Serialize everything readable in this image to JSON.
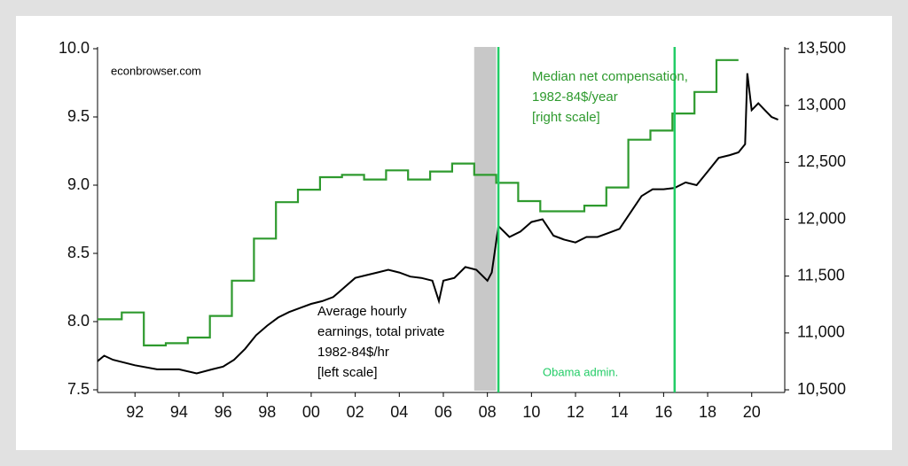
{
  "chart_data": {
    "type": "line",
    "xlim": [
      1990.3,
      2021.5
    ],
    "xticks": [
      {
        "value": 1992,
        "label": "92"
      },
      {
        "value": 1994,
        "label": "94"
      },
      {
        "value": 1996,
        "label": "96"
      },
      {
        "value": 1998,
        "label": "98"
      },
      {
        "value": 2000,
        "label": "00"
      },
      {
        "value": 2002,
        "label": "02"
      },
      {
        "value": 2004,
        "label": "04"
      },
      {
        "value": 2006,
        "label": "06"
      },
      {
        "value": 2008,
        "label": "08"
      },
      {
        "value": 2010,
        "label": "10"
      },
      {
        "value": 2012,
        "label": "12"
      },
      {
        "value": 2014,
        "label": "14"
      },
      {
        "value": 2016,
        "label": "16"
      },
      {
        "value": 2018,
        "label": "18"
      },
      {
        "value": 2020,
        "label": "20"
      }
    ],
    "ylim": [
      7.5,
      10.0
    ],
    "yticks": [
      7.5,
      {
        "value": 8,
        "label": "8.0"
      },
      8.5,
      {
        "value": 9,
        "label": "9.0"
      },
      9.5,
      {
        "value": 10,
        "label": "10.0"
      }
    ],
    "y2lim": [
      10500,
      13500
    ],
    "y2ticks": [
      {
        "value": 10500,
        "label": "10,500"
      },
      {
        "value": 11000,
        "label": "11,000"
      },
      {
        "value": 11500,
        "label": "11,500"
      },
      {
        "value": 12000,
        "label": "12,000"
      },
      {
        "value": 12500,
        "label": "12,500"
      },
      {
        "value": 13000,
        "label": "13,000"
      },
      {
        "value": 13500,
        "label": "13,500"
      }
    ],
    "shaded_regions": [
      {
        "x": [
          2007.4,
          2008.4
        ],
        "color": "#c8c8c8"
      }
    ],
    "vlines": [
      {
        "x": 2008.5,
        "color": "#22cc66"
      },
      {
        "x": 2016.5,
        "color": "#22cc66"
      }
    ],
    "series": [
      {
        "color": "#000000",
        "axis": "y",
        "x": [
          1990.3,
          1990.6,
          1991,
          1992,
          1993,
          1994,
          1994.8,
          1995.5,
          1996,
          1996.5,
          1997,
          1997.5,
          1998,
          1998.5,
          1999,
          1999.5,
          2000,
          2000.5,
          2001,
          2001.5,
          2002,
          2002.5,
          2003,
          2003.5,
          2004,
          2004.5,
          2005,
          2005.5,
          2005.8,
          2006,
          2006.5,
          2007,
          2007.5,
          2008,
          2008.2,
          2008.5,
          2009,
          2009.5,
          2010,
          2010.5,
          2011,
          2011.5,
          2012,
          2012.5,
          2013,
          2013.5,
          2014,
          2014.5,
          2015,
          2015.5,
          2016,
          2016.5,
          2017,
          2017.5,
          2018,
          2018.5,
          2019,
          2019.4,
          2019.7,
          2019.8,
          2020.0,
          2020.3,
          2020.6,
          2020.9,
          2021.2
        ],
        "values": [
          7.71,
          7.75,
          7.72,
          7.68,
          7.65,
          7.65,
          7.62,
          7.65,
          7.67,
          7.72,
          7.8,
          7.9,
          7.97,
          8.03,
          8.07,
          8.1,
          8.13,
          8.15,
          8.18,
          8.25,
          8.32,
          8.34,
          8.36,
          8.38,
          8.36,
          8.33,
          8.32,
          8.3,
          8.15,
          8.3,
          8.32,
          8.4,
          8.38,
          8.3,
          8.36,
          8.7,
          8.62,
          8.66,
          8.73,
          8.75,
          8.63,
          8.6,
          8.58,
          8.62,
          8.62,
          8.65,
          8.68,
          8.8,
          8.92,
          8.97,
          8.97,
          8.98,
          9.02,
          9.0,
          9.1,
          9.2,
          9.22,
          9.24,
          9.3,
          9.82,
          9.55,
          9.6,
          9.55,
          9.5,
          9.48
        ]
      },
      {
        "color": "#2e9a2e",
        "axis": "y2",
        "step": true,
        "x": [
          1990.3,
          1991.4,
          1992.4,
          1993.4,
          1994.4,
          1995.4,
          1996.4,
          1997.4,
          1998.4,
          1999.4,
          2000.4,
          2001.4,
          2002.4,
          2003.4,
          2004.4,
          2005.4,
          2006.4,
          2007.4,
          2008.4,
          2009.4,
          2010.4,
          2011.4,
          2012.4,
          2013.4,
          2014.4,
          2015.4,
          2016.4,
          2017.4,
          2018.4,
          2019.4
        ],
        "values": [
          11120,
          11180,
          10890,
          10910,
          10960,
          11150,
          11460,
          11830,
          12150,
          12260,
          12370,
          12390,
          12350,
          12430,
          12350,
          12420,
          12490,
          12390,
          12320,
          12160,
          12070,
          12070,
          12120,
          12280,
          12700,
          12780,
          12930,
          13120,
          13400,
          13400
        ]
      }
    ],
    "annotations": [
      {
        "lines": [
          "econbrowser.com"
        ],
        "color": "#000000"
      },
      {
        "lines": [
          "Median net compensation,",
          "1982-84$/year",
          "[right scale]"
        ],
        "color": "#2e9a2e"
      },
      {
        "lines": [
          "Average hourly",
          "earnings, total private",
          "1982-84$/hr",
          "[left scale]"
        ],
        "color": "#000000"
      },
      {
        "lines": [
          "Obama admin."
        ],
        "color": "#22cc66"
      }
    ]
  }
}
